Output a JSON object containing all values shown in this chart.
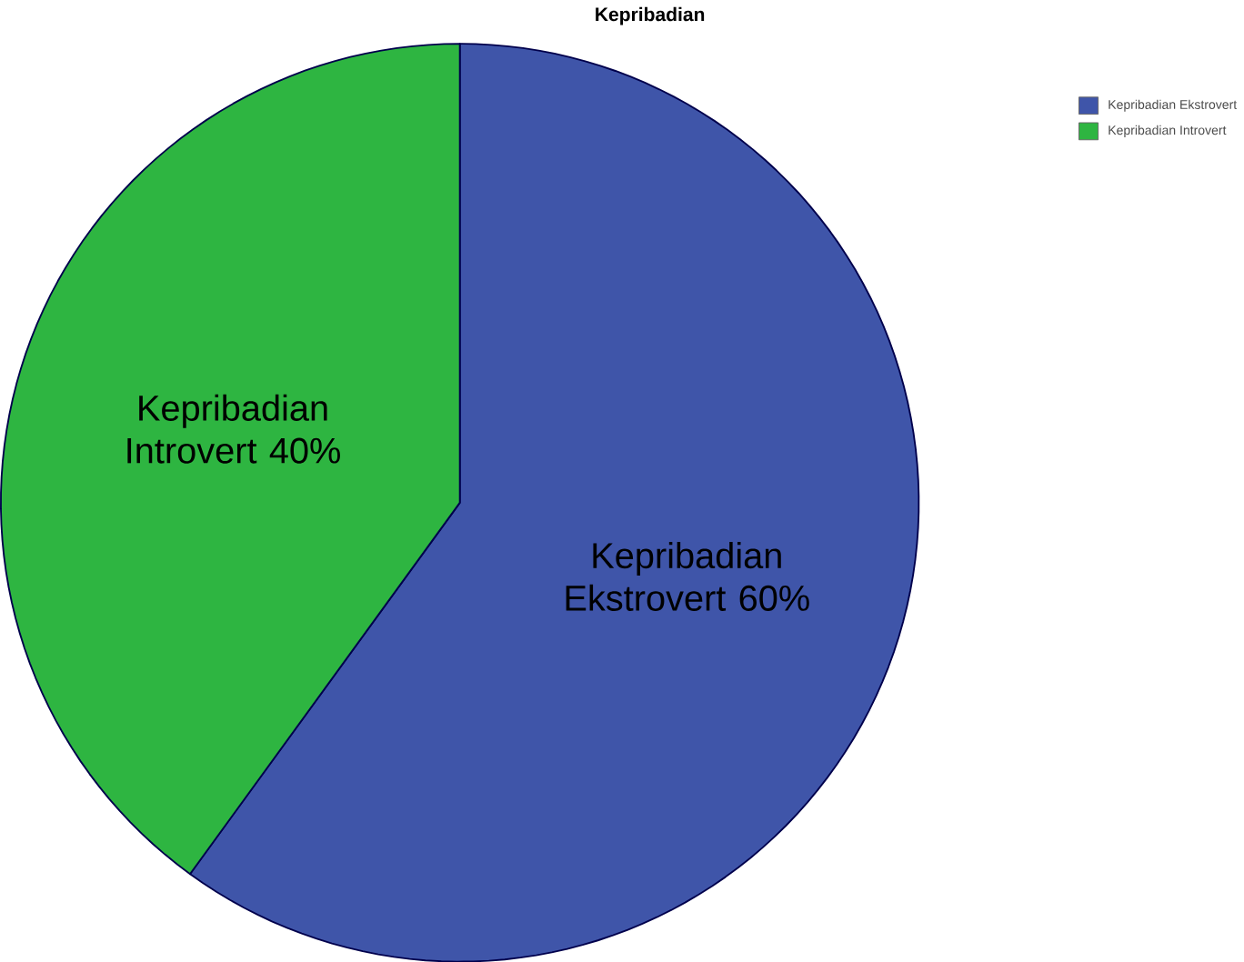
{
  "chart_data": {
    "type": "pie",
    "title": "Kepribadian",
    "categories": [
      "Kepribadian Ekstrovert",
      "Kepribadian Introvert"
    ],
    "values": [
      60,
      40
    ],
    "colors": [
      "#3f55a9",
      "#2eb541"
    ],
    "data_labels": true,
    "value_labels": [
      "60%",
      "40%"
    ],
    "legend": "top right"
  }
}
